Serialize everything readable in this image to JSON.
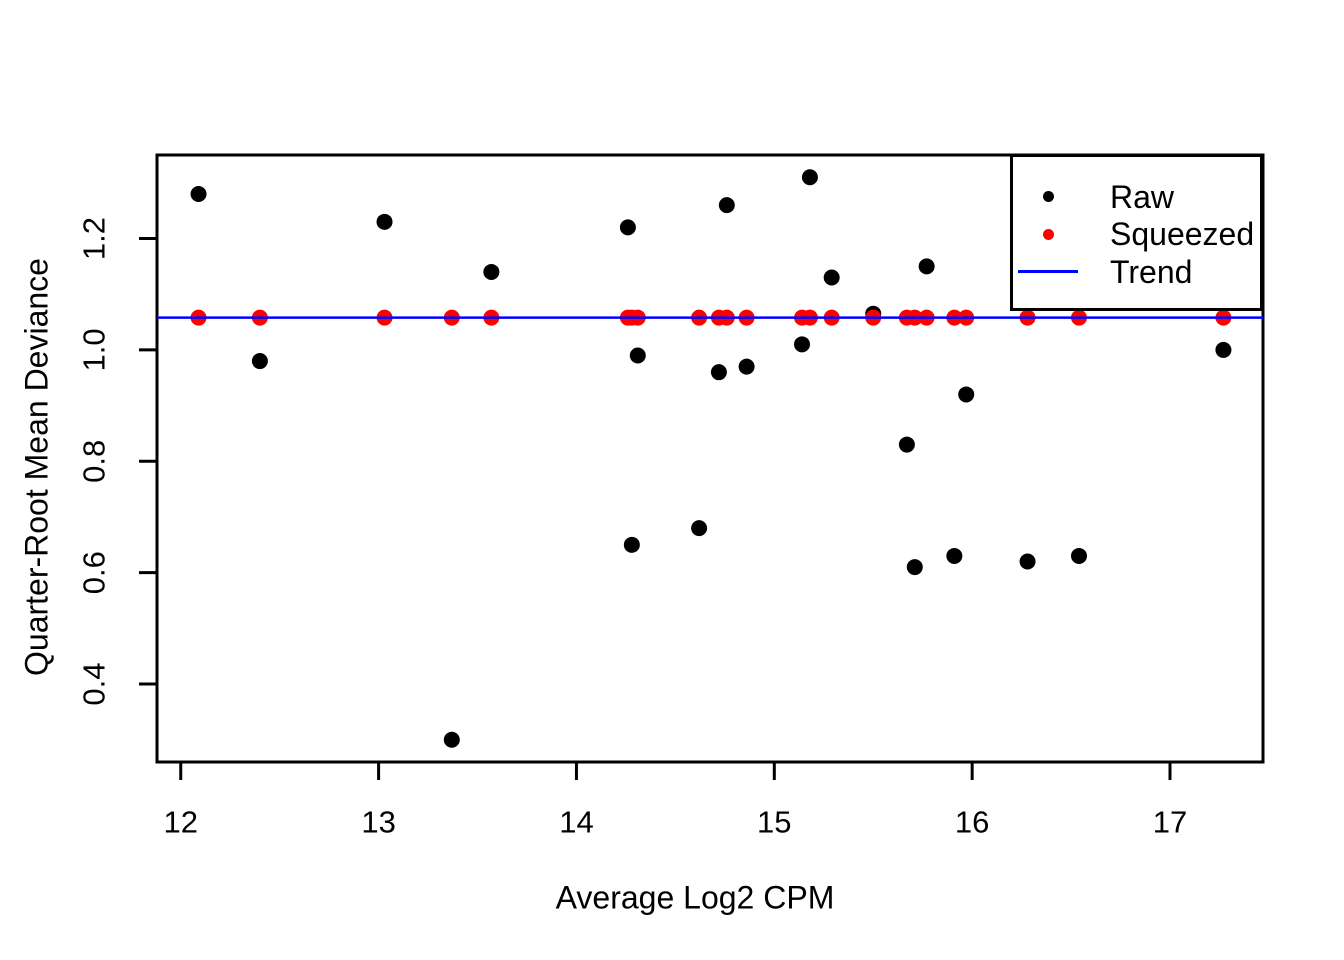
{
  "axes": {
    "xlabel": "Average Log2 CPM",
    "ylabel": "Quarter-Root Mean Deviance"
  },
  "legend": {
    "position": "topright",
    "items": [
      {
        "label": "Raw",
        "symbol": "point",
        "color": "#000000"
      },
      {
        "label": "Squeezed",
        "symbol": "point",
        "color": "#FF0000"
      },
      {
        "label": "Trend",
        "symbol": "line",
        "color": "#0000FF"
      }
    ]
  },
  "chart_data": {
    "type": "scatter",
    "title": "",
    "xlabel": "Average Log2 CPM",
    "ylabel": "Quarter-Root Mean Deviance",
    "xlim": [
      11.88,
      17.47
    ],
    "ylim": [
      0.26,
      1.35
    ],
    "x_ticks": [
      12,
      13,
      14,
      15,
      16,
      17
    ],
    "y_ticks": [
      0.4,
      0.6,
      0.8,
      1.0,
      1.2
    ],
    "grid": false,
    "legend_position": "topright",
    "x": [
      12.09,
      12.4,
      13.03,
      13.37,
      13.57,
      14.26,
      14.28,
      14.31,
      14.62,
      14.72,
      14.76,
      14.86,
      15.14,
      15.18,
      15.29,
      15.5,
      15.67,
      15.71,
      15.77,
      15.91,
      15.97,
      16.28,
      16.54,
      17.27
    ],
    "series": [
      {
        "name": "Raw",
        "type": "points",
        "color": "#000000",
        "y": [
          1.28,
          0.98,
          1.23,
          0.3,
          1.14,
          1.22,
          0.65,
          0.99,
          0.68,
          0.96,
          1.26,
          0.97,
          1.01,
          1.31,
          1.13,
          1.065,
          0.83,
          0.61,
          1.15,
          0.63,
          0.92,
          0.62,
          0.63,
          1.0
        ]
      },
      {
        "name": "Squeezed",
        "type": "points",
        "color": "#FF0000",
        "y": [
          1.058,
          1.058,
          1.058,
          1.058,
          1.058,
          1.058,
          1.058,
          1.058,
          1.058,
          1.058,
          1.058,
          1.058,
          1.058,
          1.058,
          1.058,
          1.058,
          1.058,
          1.058,
          1.058,
          1.058,
          1.058,
          1.058,
          1.058,
          1.058
        ]
      },
      {
        "name": "Trend",
        "type": "hline",
        "color": "#0000FF",
        "y": 1.058
      }
    ]
  }
}
